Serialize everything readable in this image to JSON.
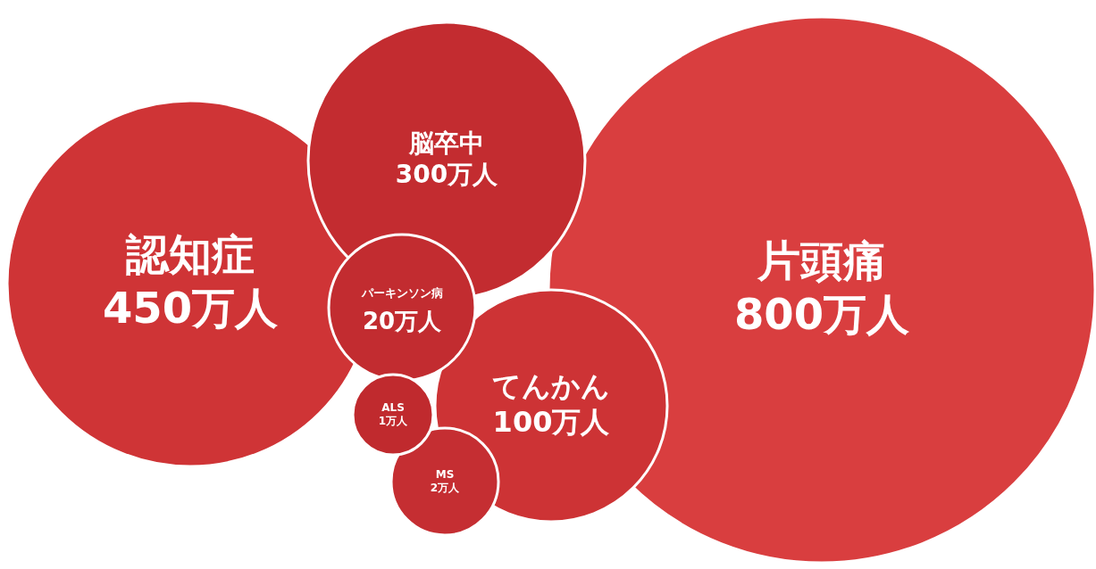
{
  "chart_data": {
    "type": "other",
    "categories": [
      "認知症",
      "脳卒中",
      "パーキンソン病",
      "てんかん",
      "ALS",
      "MS",
      "片頭痛"
    ],
    "values": [
      450,
      300,
      20,
      100,
      1,
      2,
      800
    ],
    "value_labels": [
      "450万人",
      "300万人",
      "20万人",
      "100万人",
      "1万人",
      "2万人",
      "800万人"
    ],
    "colors": [
      "#cf3436",
      "#c32c30",
      "#c22c30",
      "#cd3335",
      "#c02a2e",
      "#c52e32",
      "#d93e3f"
    ]
  }
}
